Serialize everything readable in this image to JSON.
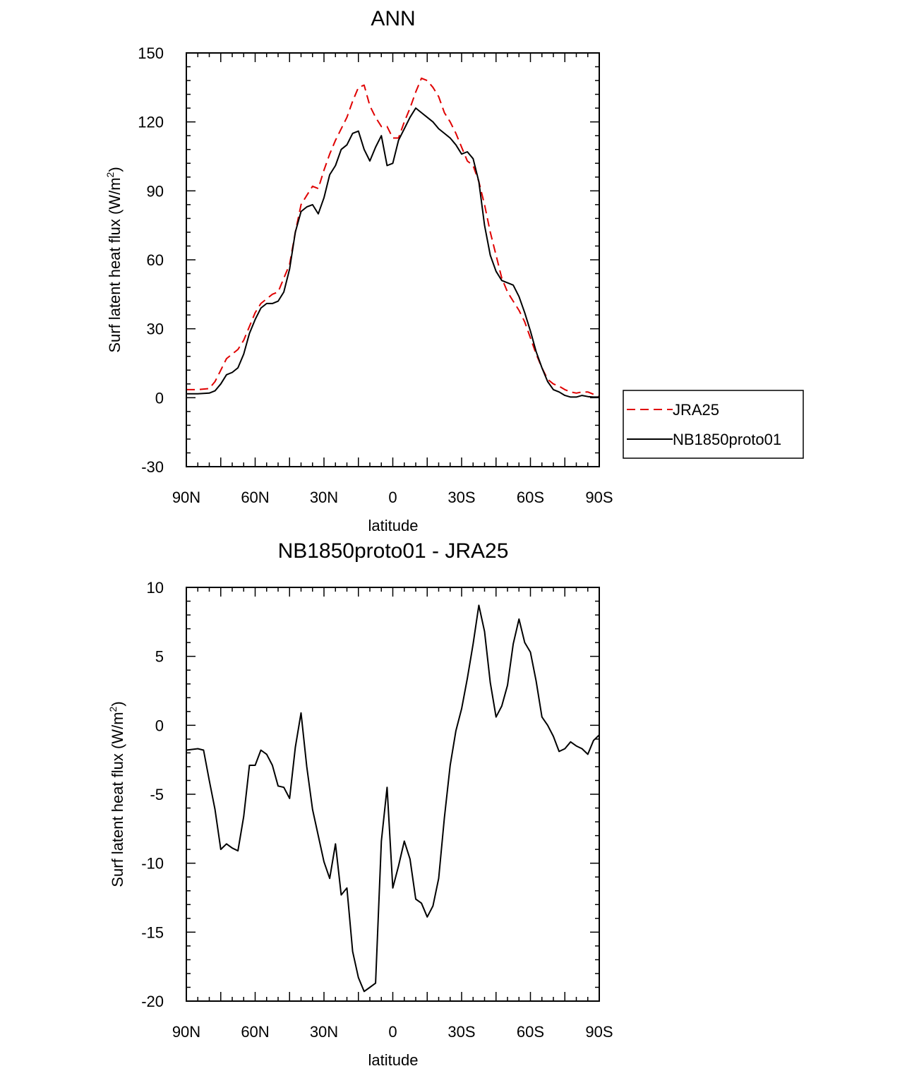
{
  "chart_data": [
    {
      "type": "line",
      "title": "ANN",
      "xlabel": "latitude",
      "ylabel": "Surf latent heat flux (W/m",
      "ylabel_sup": "2",
      "ylabel_end": ")",
      "x_direction": "90N on the left to 90S on the right",
      "xlim": [
        90,
        -90
      ],
      "ylim": [
        -30,
        150
      ],
      "x_ticks": [
        90,
        60,
        30,
        0,
        -30,
        -60,
        -90
      ],
      "x_tick_labels": [
        "90N",
        "60N",
        "30N",
        "0",
        "30S",
        "60S",
        "90S"
      ],
      "y_ticks": [
        -30,
        0,
        30,
        60,
        90,
        120,
        150
      ],
      "y_tick_labels": [
        "-30",
        "0",
        "30",
        "60",
        "90",
        "120",
        "150"
      ],
      "legend_position": "right, outside plot",
      "x": [
        90,
        85,
        80,
        77.5,
        75,
        72.5,
        70,
        67.5,
        65,
        62.5,
        60,
        57.5,
        55,
        52.5,
        50,
        47.5,
        45,
        42.5,
        40,
        37.5,
        35,
        32.5,
        30,
        27.5,
        25,
        22.5,
        20,
        17.5,
        15,
        12.5,
        10,
        7.5,
        5,
        2.5,
        0,
        -2.5,
        -5,
        -7.5,
        -10,
        -12.5,
        -15,
        -17.5,
        -20,
        -22.5,
        -25,
        -27.5,
        -30,
        -32.5,
        -35,
        -37.5,
        -40,
        -42.5,
        -45,
        -47.5,
        -50,
        -52.5,
        -55,
        -57.5,
        -60,
        -62.5,
        -65,
        -67.5,
        -70,
        -72.5,
        -75,
        -77.5,
        -80,
        -82.5,
        -85,
        -87.5,
        -90
      ],
      "series": [
        {
          "name": "JRA25",
          "color": "#e00000",
          "dash": "dashed",
          "values": [
            3.5,
            3.5,
            4,
            7,
            12,
            17,
            19,
            21,
            25,
            31,
            37,
            41,
            43,
            45,
            46,
            52,
            58,
            72,
            84,
            88,
            92,
            91,
            99,
            106,
            112,
            117,
            122,
            129,
            135,
            136,
            127,
            122,
            118,
            118,
            113,
            113,
            120,
            126,
            133,
            139,
            138,
            135,
            131,
            124,
            120,
            115,
            109,
            103,
            101,
            94,
            84,
            72,
            62,
            52,
            46,
            42,
            38,
            33,
            26,
            19,
            13,
            8,
            6,
            5,
            3.5,
            2.5,
            2,
            2.5,
            2.5,
            1.5,
            0.5
          ]
        },
        {
          "name": "NB1850proto01",
          "color": "#000000",
          "dash": "solid",
          "values": [
            1.7,
            1.7,
            2,
            3,
            6,
            10,
            11,
            13,
            19,
            28,
            34,
            39,
            41,
            41,
            42,
            46,
            56,
            72,
            81,
            83,
            84,
            80,
            87,
            97,
            101,
            108,
            110,
            115,
            116,
            108,
            103,
            109,
            114,
            101,
            102,
            112,
            117,
            122,
            126,
            124,
            122,
            120,
            117,
            115,
            113,
            110,
            106,
            107,
            104,
            94,
            75,
            62,
            55,
            51,
            50,
            49,
            44,
            37,
            29,
            20,
            13,
            7,
            3.5,
            2.5,
            1,
            0.3,
            0.3,
            1,
            0.5,
            0.3,
            0.3
          ]
        }
      ]
    },
    {
      "type": "line",
      "title": "NB1850proto01 - JRA25",
      "xlabel": "latitude",
      "ylabel": "Surf latent heat flux (W/m",
      "ylabel_sup": "2",
      "ylabel_end": ")",
      "x_direction": "90N on the left to 90S on the right",
      "xlim": [
        90,
        -90
      ],
      "ylim": [
        -20,
        10
      ],
      "x_ticks": [
        90,
        60,
        30,
        0,
        -30,
        -60,
        -90
      ],
      "x_tick_labels": [
        "90N",
        "60N",
        "30N",
        "0",
        "30S",
        "60S",
        "90S"
      ],
      "y_ticks": [
        -20,
        -15,
        -10,
        -5,
        0,
        5,
        10
      ],
      "y_tick_labels": [
        "-20",
        "-15",
        "-10",
        "-5",
        "0",
        "5",
        "10"
      ],
      "x": [
        90,
        85,
        82.5,
        80,
        77.5,
        75,
        72.5,
        70,
        67.5,
        65,
        62.5,
        60,
        57.5,
        55,
        52.5,
        50,
        47.5,
        45,
        42.5,
        40,
        37.5,
        35,
        32.5,
        30,
        27.5,
        25,
        22.5,
        20,
        17.5,
        15,
        12.5,
        10,
        7.5,
        5,
        2.5,
        0,
        -2.5,
        -5,
        -7.5,
        -10,
        -12.5,
        -15,
        -17.5,
        -20,
        -22.5,
        -25,
        -27.5,
        -30,
        -32.5,
        -35,
        -37.5,
        -40,
        -42.5,
        -45,
        -47.5,
        -50,
        -52.5,
        -55,
        -57.5,
        -60,
        -62.5,
        -65,
        -67.5,
        -70,
        -72.5,
        -75,
        -77.5,
        -80,
        -82.5,
        -85,
        -87.5,
        -90
      ],
      "series": [
        {
          "name": "NB1850proto01 - JRA25",
          "color": "#000000",
          "dash": "solid",
          "values": [
            -1.8,
            -1.7,
            -1.8,
            -4,
            -6.1,
            -9,
            -8.6,
            -8.9,
            -9.1,
            -6.6,
            -2.9,
            -2.9,
            -1.8,
            -2.1,
            -2.9,
            -4.4,
            -4.5,
            -5.3,
            -1.6,
            0.9,
            -3,
            -6.1,
            -8,
            -9.9,
            -11.1,
            -8.6,
            -12.3,
            -11.8,
            -16.4,
            -18.3,
            -19.3,
            -19,
            -18.7,
            -8.4,
            -4.5,
            -11.8,
            -10.2,
            -8.4,
            -9.7,
            -12.6,
            -12.9,
            -13.9,
            -13.1,
            -11.1,
            -6.7,
            -2.9,
            -0.4,
            1.2,
            3.4,
            5.9,
            8.7,
            6.8,
            3.1,
            0.6,
            1.4,
            2.9,
            5.9,
            7.7,
            6,
            5.3,
            3.2,
            0.6,
            0,
            -0.8,
            -1.9,
            -1.7,
            -1.2,
            -1.5,
            -1.7,
            -2.1,
            -1.1,
            -0.7
          ]
        }
      ]
    }
  ]
}
